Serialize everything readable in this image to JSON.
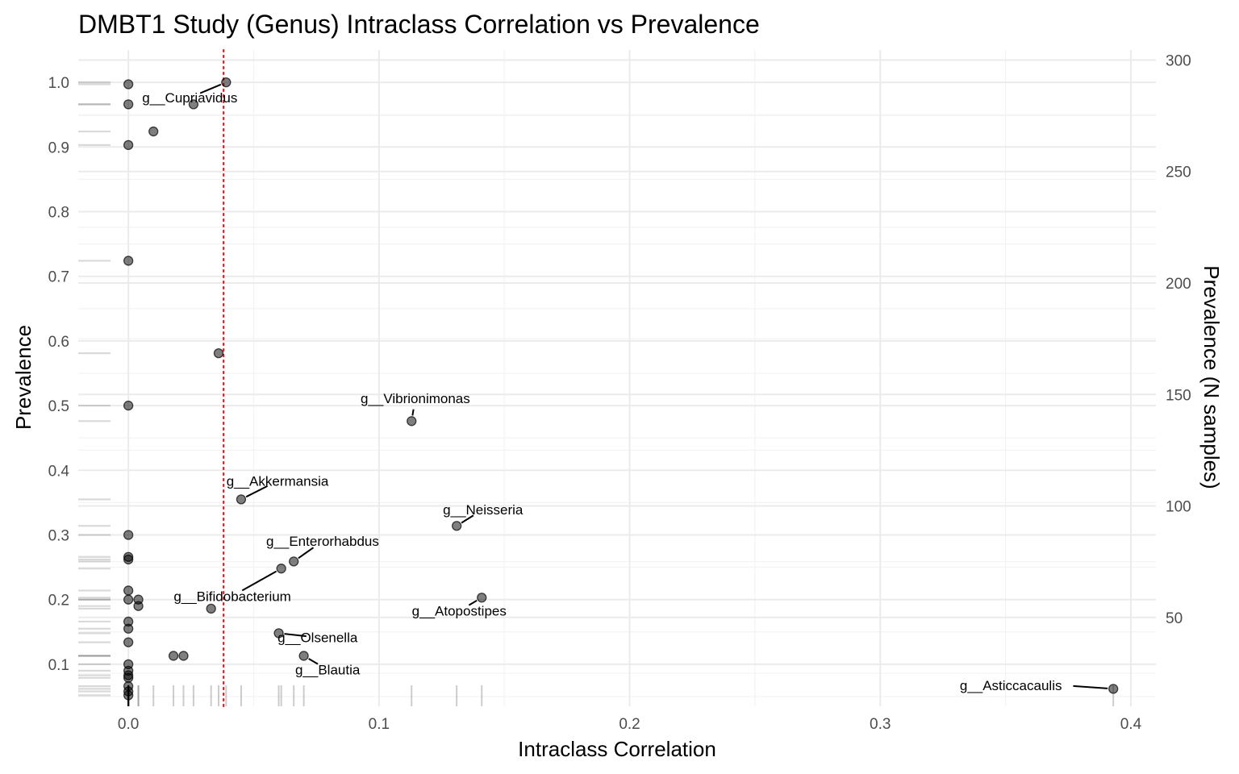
{
  "chart_data": {
    "type": "scatter",
    "title": "DMBT1 Study (Genus) Intraclass Correlation vs Prevalence",
    "xlabel": "Intraclass Correlation",
    "ylabel": "Prevalence",
    "y2label": "Prevalence (N samples)",
    "xlim": [
      -0.02,
      0.41
    ],
    "ylim": [
      0.035,
      1.05
    ],
    "y2_factor": 290,
    "x_ticks": [
      0.0,
      0.1,
      0.2,
      0.3,
      0.4
    ],
    "x_tick_labels": [
      "0.0",
      "0.1",
      "0.2",
      "0.3",
      "0.4"
    ],
    "y_ticks": [
      0.1,
      0.2,
      0.3,
      0.4,
      0.5,
      0.6,
      0.7,
      0.8,
      0.9,
      1.0
    ],
    "y_tick_labels": [
      "0.1",
      "0.2",
      "0.3",
      "0.4",
      "0.5",
      "0.6",
      "0.7",
      "0.8",
      "0.9",
      "1.0"
    ],
    "y2_ticks": [
      50,
      100,
      150,
      200,
      250,
      300
    ],
    "y2_tick_labels": [
      "50",
      "100",
      "150",
      "200",
      "250",
      "300"
    ],
    "grid": true,
    "threshold_line": {
      "x": 0.038,
      "color": "#e41a1c",
      "style": "dotted"
    },
    "point_color": "#000000",
    "label_color": "#000000",
    "rug": true,
    "points": [
      {
        "x": 0.0,
        "y": 0.997
      },
      {
        "x": 0.039,
        "y": 1.0
      },
      {
        "x": 0.0,
        "y": 0.966
      },
      {
        "x": 0.026,
        "y": 0.966
      },
      {
        "x": 0.01,
        "y": 0.924
      },
      {
        "x": 0.0,
        "y": 0.903
      },
      {
        "x": 0.0,
        "y": 0.724
      },
      {
        "x": 0.036,
        "y": 0.581
      },
      {
        "x": 0.0,
        "y": 0.5
      },
      {
        "x": 0.113,
        "y": 0.476
      },
      {
        "x": 0.045,
        "y": 0.355
      },
      {
        "x": 0.131,
        "y": 0.314
      },
      {
        "x": 0.0,
        "y": 0.3
      },
      {
        "x": 0.0,
        "y": 0.266
      },
      {
        "x": 0.0,
        "y": 0.262
      },
      {
        "x": 0.066,
        "y": 0.259
      },
      {
        "x": 0.061,
        "y": 0.248
      },
      {
        "x": 0.0,
        "y": 0.214
      },
      {
        "x": 0.0,
        "y": 0.2
      },
      {
        "x": 0.004,
        "y": 0.2
      },
      {
        "x": 0.141,
        "y": 0.203
      },
      {
        "x": 0.004,
        "y": 0.19
      },
      {
        "x": 0.033,
        "y": 0.186
      },
      {
        "x": 0.0,
        "y": 0.166
      },
      {
        "x": 0.0,
        "y": 0.155
      },
      {
        "x": 0.06,
        "y": 0.148
      },
      {
        "x": 0.0,
        "y": 0.134
      },
      {
        "x": 0.018,
        "y": 0.113
      },
      {
        "x": 0.022,
        "y": 0.113
      },
      {
        "x": 0.07,
        "y": 0.113
      },
      {
        "x": 0.0,
        "y": 0.1
      },
      {
        "x": 0.0,
        "y": 0.09
      },
      {
        "x": 0.0,
        "y": 0.083
      },
      {
        "x": 0.0,
        "y": 0.079
      },
      {
        "x": 0.0,
        "y": 0.066
      },
      {
        "x": 0.0,
        "y": 0.058
      },
      {
        "x": 0.0,
        "y": 0.052
      },
      {
        "x": 0.393,
        "y": 0.062
      }
    ],
    "labels": [
      {
        "text": "g__Cupriavidus",
        "x": 0.039,
        "y": 1.0,
        "lx": 0.0245,
        "ly": 0.969,
        "anchor": "middle"
      },
      {
        "text": "g__Vibrionimonas",
        "x": 0.113,
        "y": 0.476,
        "lx": 0.1145,
        "ly": 0.504,
        "anchor": "middle"
      },
      {
        "text": "g__Akkermansia",
        "x": 0.045,
        "y": 0.355,
        "lx": 0.0595,
        "ly": 0.376,
        "anchor": "middle"
      },
      {
        "text": "g__Neisseria",
        "x": 0.131,
        "y": 0.314,
        "lx": 0.1415,
        "ly": 0.332,
        "anchor": "middle"
      },
      {
        "text": "g__Enterorhabdus",
        "x": 0.066,
        "y": 0.259,
        "lx": 0.0775,
        "ly": 0.283,
        "anchor": "middle"
      },
      {
        "text": "g__Bifidobacterium",
        "x": 0.061,
        "y": 0.248,
        "lx": 0.0415,
        "ly": 0.198,
        "anchor": "middle"
      },
      {
        "text": "g__Atopostipes",
        "x": 0.141,
        "y": 0.203,
        "lx": 0.132,
        "ly": 0.175,
        "anchor": "middle"
      },
      {
        "text": "g__Olsenella",
        "x": 0.06,
        "y": 0.148,
        "lx": 0.0755,
        "ly": 0.134,
        "anchor": "middle"
      },
      {
        "text": "g__Blautia",
        "x": 0.07,
        "y": 0.113,
        "lx": 0.0795,
        "ly": 0.084,
        "anchor": "middle"
      },
      {
        "text": "g__Asticcacaulis",
        "x": 0.393,
        "y": 0.062,
        "lx": 0.3725,
        "ly": 0.06,
        "anchor": "end"
      }
    ]
  }
}
